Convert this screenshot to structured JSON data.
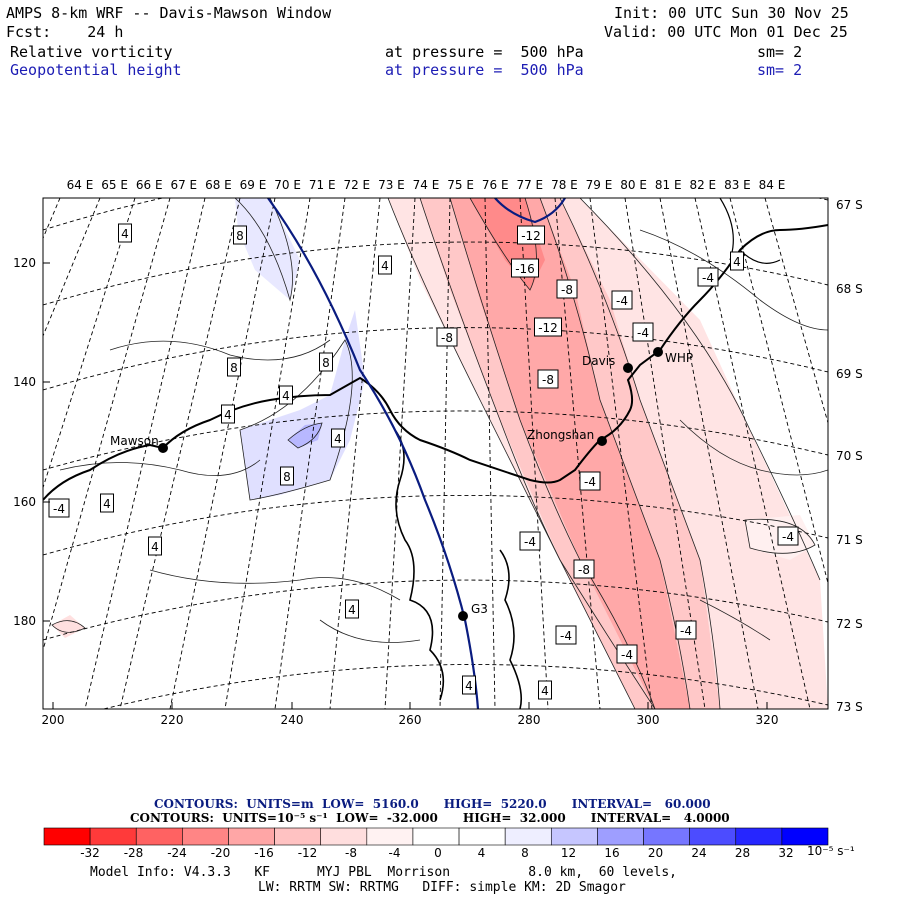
{
  "header": {
    "title": "AMPS 8-km WRF -- Davis-Mawson Window",
    "forecast": "Fcst:    24 h",
    "init": "Init: 00 UTC Sun 30 Nov 25",
    "valid": "Valid: 00 UTC Mon 01 Dec 25",
    "field1": {
      "name": "Relative vorticity",
      "level": "at pressure =  500 hPa",
      "smooth": "sm= 2"
    },
    "field2": {
      "name": "Geopotential height",
      "level": "at pressure =  500 hPa",
      "smooth": "sm= 2"
    }
  },
  "axes": {
    "top_lon_labels": [
      "64 E",
      "65 E",
      "66 E",
      "67 E",
      "68 E",
      "69 E",
      "70 E",
      "71 E",
      "72 E",
      "73 E",
      "74 E",
      "75 E",
      "76 E",
      "77 E",
      "78 E",
      "79 E",
      "80 E",
      "81 E",
      "82 E",
      "83 E",
      "84 E"
    ],
    "right_lat_labels": [
      "67 S",
      "68 S",
      "69 S",
      "70 S",
      "71 S",
      "72 S",
      "73 S"
    ],
    "left_y_labels": [
      "120",
      "140",
      "160",
      "180"
    ],
    "bottom_x_labels": [
      "200",
      "220",
      "240",
      "260",
      "280",
      "300",
      "320"
    ]
  },
  "stations": [
    {
      "name": "Mawson"
    },
    {
      "name": "Davis"
    },
    {
      "name": "WHP"
    },
    {
      "name": "Zhongshan"
    },
    {
      "name": "G3"
    }
  ],
  "contour_labels": [
    "4",
    "8",
    "4",
    "8",
    "8",
    "4",
    "4",
    "4",
    "8",
    "4",
    "-4",
    "4",
    "4",
    "4",
    "-8",
    "-12",
    "-16",
    "-8",
    "-4",
    "-12",
    "-4",
    "-8",
    "-4",
    "-4",
    "-8",
    "-4",
    "-4",
    "-4",
    "4",
    "-4",
    "4",
    "-4"
  ],
  "footer": {
    "contours1": "CONTOURS:  UNITS=m  LOW=  5160.0      HIGH=  5220.0      INTERVAL=   60.000",
    "contours2": "CONTOURS:  UNITS=10⁻⁵ s⁻¹  LOW=  -32.000      HIGH=  32.000      INTERVAL=   4.0000",
    "model_info": "Model Info: V4.3.3   KF      MYJ PBL  Morrison          8.0 km,  60 levels,",
    "physics": "LW: RRTM SW: RRTMG   DIFF: simple KM: 2D Smagor"
  },
  "colorbar": {
    "tick_labels": [
      "-32",
      "-28",
      "-24",
      "-20",
      "-16",
      "-12",
      "-8",
      "-4",
      "0",
      "4",
      "8",
      "12",
      "16",
      "20",
      "24",
      "28",
      "32"
    ],
    "unit_label": "10⁻⁵ s⁻¹",
    "colors": [
      "#ff0000",
      "#ff3a3a",
      "#ff6262",
      "#ff8585",
      "#ffa6a6",
      "#ffc2c2",
      "#ffdede",
      "#fff2f2",
      "#ffffff",
      "#ffffff",
      "#eeeeff",
      "#c6c6ff",
      "#9e9eff",
      "#7676ff",
      "#4c4cff",
      "#2626ff",
      "#0000ff"
    ]
  }
}
